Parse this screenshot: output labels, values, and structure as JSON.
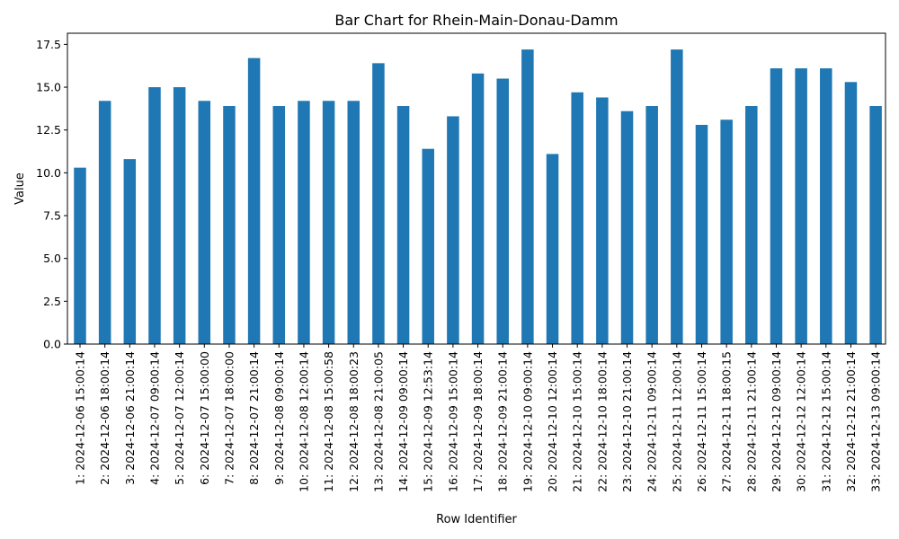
{
  "chart_data": {
    "type": "bar",
    "title": "Bar Chart for Rhein-Main-Donau-Damm",
    "xlabel": "Row Identifier",
    "ylabel": "Value",
    "ylim": [
      0,
      18.15
    ],
    "yticks": [
      "0.0",
      "2.5",
      "5.0",
      "7.5",
      "10.0",
      "12.5",
      "15.0",
      "17.5"
    ],
    "grid": false,
    "legend": "none",
    "bar_color": "#1f77b4",
    "categories": [
      "1: 2024-12-06 15:00:14",
      "2: 2024-12-06 18:00:14",
      "3: 2024-12-06 21:00:14",
      "4: 2024-12-07 09:00:14",
      "5: 2024-12-07 12:00:14",
      "6: 2024-12-07 15:00:00",
      "7: 2024-12-07 18:00:00",
      "8: 2024-12-07 21:00:14",
      "9: 2024-12-08 09:00:14",
      "10: 2024-12-08 12:00:14",
      "11: 2024-12-08 15:00:58",
      "12: 2024-12-08 18:00:23",
      "13: 2024-12-08 21:00:05",
      "14: 2024-12-09 09:00:14",
      "15: 2024-12-09 12:53:14",
      "16: 2024-12-09 15:00:14",
      "17: 2024-12-09 18:00:14",
      "18: 2024-12-09 21:00:14",
      "19: 2024-12-10 09:00:14",
      "20: 2024-12-10 12:00:14",
      "21: 2024-12-10 15:00:14",
      "22: 2024-12-10 18:00:14",
      "23: 2024-12-10 21:00:14",
      "24: 2024-12-11 09:00:14",
      "25: 2024-12-11 12:00:14",
      "26: 2024-12-11 15:00:14",
      "27: 2024-12-11 18:00:15",
      "28: 2024-12-11 21:00:14",
      "29: 2024-12-12 09:00:14",
      "30: 2024-12-12 12:00:14",
      "31: 2024-12-12 15:00:14",
      "32: 2024-12-12 21:00:14",
      "33: 2024-12-13 09:00:14"
    ],
    "values": [
      10.3,
      14.2,
      10.8,
      15.0,
      15.0,
      14.2,
      13.9,
      16.7,
      13.9,
      14.2,
      14.2,
      14.2,
      16.4,
      13.9,
      11.4,
      13.3,
      15.8,
      15.5,
      17.2,
      11.1,
      14.7,
      14.4,
      13.6,
      13.9,
      17.2,
      12.8,
      13.1,
      13.9,
      16.1,
      16.1,
      16.1,
      15.3,
      13.9
    ]
  }
}
